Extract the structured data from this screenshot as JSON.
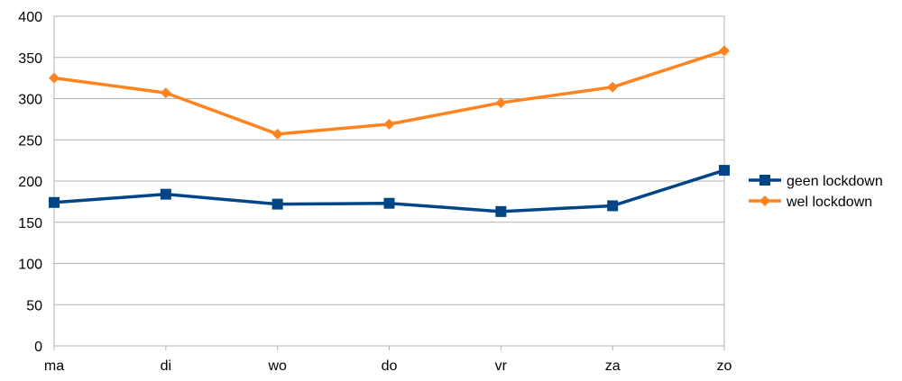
{
  "chart_data": {
    "type": "line",
    "categories": [
      "ma",
      "di",
      "wo",
      "do",
      "vr",
      "za",
      "zo"
    ],
    "series": [
      {
        "name": "geen lockdown",
        "values": [
          174,
          184,
          172,
          173,
          163,
          170,
          213
        ],
        "color": "#004586",
        "marker": "square"
      },
      {
        "name": "wel lockdown",
        "values": [
          325,
          307,
          257,
          269,
          295,
          314,
          358
        ],
        "color": "#ff8420",
        "marker": "diamond"
      }
    ],
    "yticks": [
      0,
      50,
      100,
      150,
      200,
      250,
      300,
      350,
      400
    ],
    "ylim": [
      0,
      400
    ],
    "grid": true,
    "legend": "right",
    "title": "",
    "xlabel": "",
    "ylabel": ""
  }
}
